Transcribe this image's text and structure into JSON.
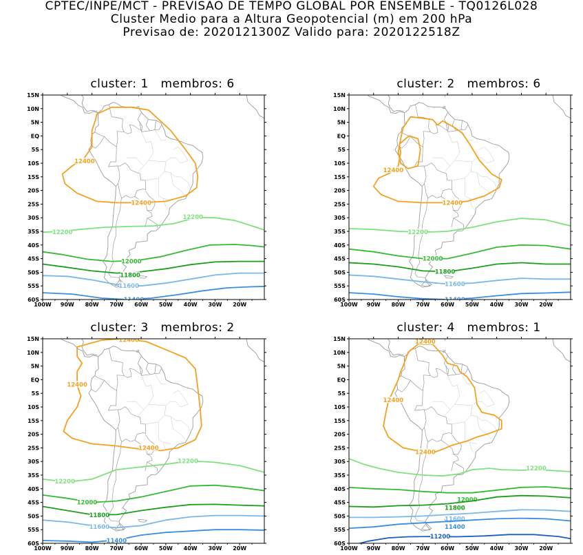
{
  "header": {
    "line1": "CPTEC/INPE/MCT - PREVISAO DE TEMPO GLOBAL POR ENSEMBLE - TQ0126L028",
    "line2": "Cluster Medio para a Altura Geopotencial (m) em 200 hPa",
    "line3": "Previsao de: 2020121300Z    Valido para: 2020122518Z"
  },
  "axes": {
    "lat_labels": [
      "15N",
      "10N",
      "5N",
      "EQ",
      "5S",
      "10S",
      "15S",
      "20S",
      "25S",
      "30S",
      "35S",
      "40S",
      "45S",
      "50S",
      "55S",
      "60S"
    ],
    "lon_labels": [
      "100W",
      "90W",
      "80W",
      "70W",
      "60W",
      "50W",
      "40W",
      "30W",
      "20W"
    ]
  },
  "colors": {
    "c12400": "#f5a11e",
    "c12200": "#7de27d",
    "c12000": "#33bb33",
    "c11800": "#17a017",
    "c11600": "#7ab7ea",
    "c11400": "#3a8de0",
    "c11200": "#1a5fc0",
    "coast": "#9a9a9a"
  },
  "panels": [
    {
      "title": "cluster: 1   membros: 6",
      "contours": [
        {
          "level": "12400",
          "label": "12400",
          "label2": "12400"
        },
        {
          "level": "12200",
          "label": "12200",
          "label2": "12200"
        },
        {
          "level": "12000",
          "label": "12000"
        },
        {
          "level": "11800",
          "label": "11800"
        },
        {
          "level": "11600",
          "label": "11600"
        },
        {
          "level": "11400",
          "label": "11400"
        }
      ]
    },
    {
      "title": "cluster: 2   membros: 6",
      "contours": [
        {
          "level": "12400",
          "label": "12400",
          "label2": "12400"
        },
        {
          "level": "12200",
          "label": "12200"
        },
        {
          "level": "12000",
          "label": "12000"
        },
        {
          "level": "11800",
          "label": "11800"
        },
        {
          "level": "11600",
          "label": "11600"
        },
        {
          "level": "11400",
          "label": "11400"
        }
      ]
    },
    {
      "title": "cluster: 3   membros: 2",
      "contours": [
        {
          "level": "12400",
          "label": "12400",
          "label2": "12400",
          "label3": "12400"
        },
        {
          "level": "12200",
          "label": "12200",
          "label2": "12200"
        },
        {
          "level": "12000",
          "label": "12000"
        },
        {
          "level": "11800",
          "label": "11800"
        },
        {
          "level": "11600",
          "label": "11600"
        },
        {
          "level": "11400",
          "label": "11400"
        }
      ]
    },
    {
      "title": "cluster: 4   membros: 1",
      "contours": [
        {
          "level": "12400",
          "label": "12400",
          "label2": "12400",
          "label3": "12400"
        },
        {
          "level": "12200",
          "label": "12200"
        },
        {
          "level": "12000",
          "label": "12000"
        },
        {
          "level": "11800",
          "label": "11800"
        },
        {
          "level": "11600",
          "label": "11600"
        },
        {
          "level": "11400",
          "label": "11400"
        },
        {
          "level": "11200",
          "label": "11200"
        }
      ]
    }
  ]
}
